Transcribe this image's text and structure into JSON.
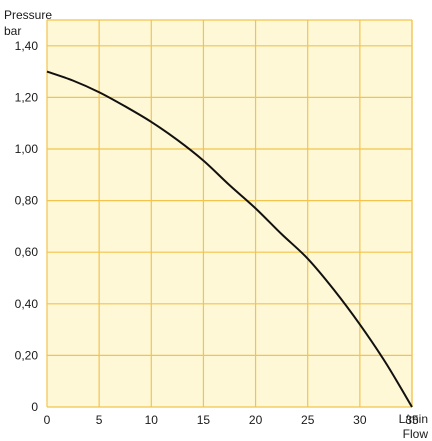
{
  "chart_data": {
    "type": "line",
    "ylabel_line1": "Pressure",
    "ylabel_line2": "bar",
    "xlabel_unit": "L/min",
    "xlabel": "Flow",
    "xlim": [
      0,
      35
    ],
    "ylim": [
      0,
      1.5
    ],
    "x_ticks": [
      "0",
      "5",
      "10",
      "15",
      "20",
      "25",
      "30",
      "35"
    ],
    "y_ticks": [
      "0",
      "0,20",
      "0,40",
      "0,60",
      "0,80",
      "1,00",
      "1,20",
      "1,40"
    ],
    "grid": true,
    "colors": {
      "background": "#fef8d6",
      "grid": "#f2c44e",
      "line": "#111111"
    },
    "series": [
      {
        "x": [
          0,
          2.5,
          5,
          7.5,
          10,
          12.5,
          15,
          17.5,
          20,
          22.5,
          25,
          27.5,
          30,
          32.5,
          35
        ],
        "y": [
          1.3,
          1.265,
          1.22,
          1.165,
          1.105,
          1.035,
          0.955,
          0.86,
          0.77,
          0.67,
          0.575,
          0.455,
          0.32,
          0.17,
          0.0
        ]
      }
    ]
  }
}
